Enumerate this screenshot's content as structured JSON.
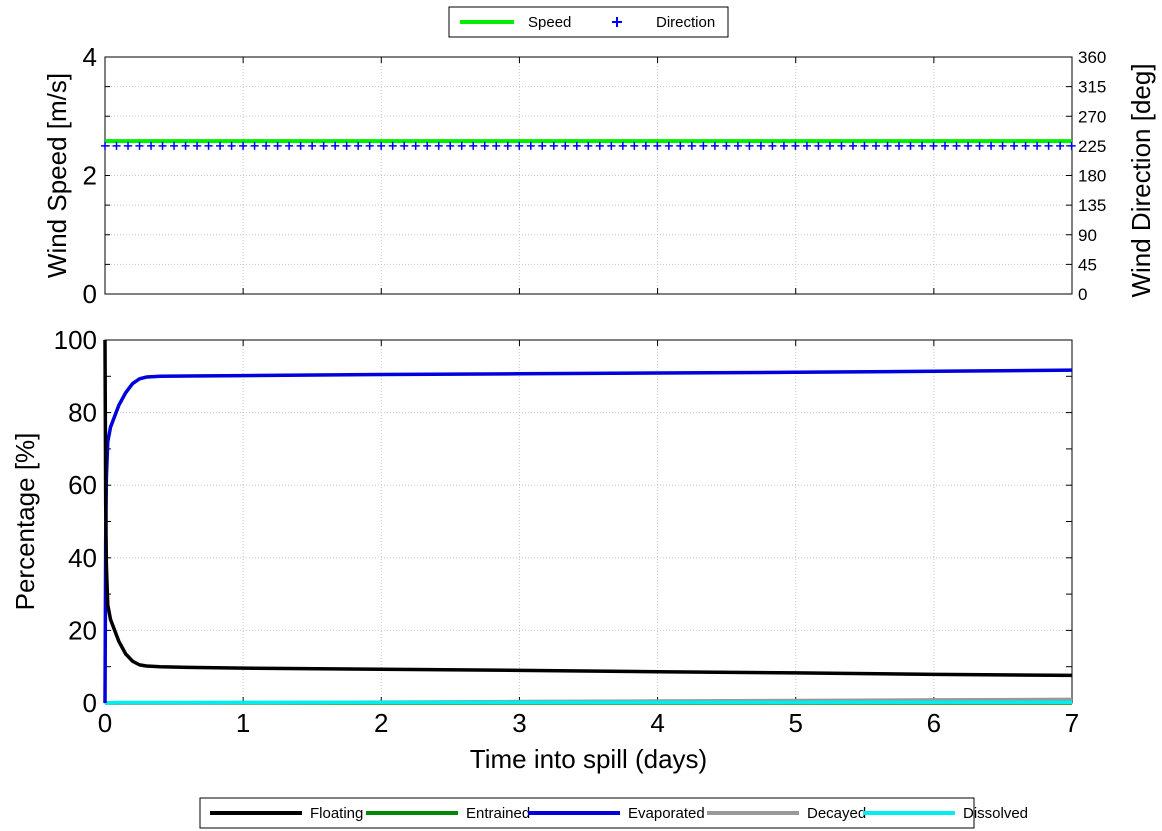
{
  "chart_data": [
    {
      "type": "line",
      "xlim": [
        0,
        7
      ],
      "ylabel": "Wind Speed [m/s]",
      "ylim": [
        0,
        4
      ],
      "yticks": [
        "0",
        "2",
        "4"
      ],
      "y2label": "Wind Direction [deg]",
      "y2lim": [
        0,
        360
      ],
      "y2ticks": [
        "0",
        "45",
        "90",
        "135",
        "180",
        "225",
        "270",
        "315",
        "360"
      ],
      "grid": true,
      "legend": "top-center",
      "series": [
        {
          "name": "Speed",
          "axis": "left",
          "color": "#00ee00",
          "x": [
            0,
            7
          ],
          "y": [
            2.58,
            2.58
          ]
        },
        {
          "name": "Direction",
          "axis": "right",
          "color": "#0000ff",
          "marker": "+",
          "x_start": 0,
          "x_end": 7,
          "x_step": 0.0833,
          "y": 225
        }
      ]
    },
    {
      "type": "line",
      "xlabel": "Time into spill (days)",
      "xlim": [
        0,
        7
      ],
      "xticks": [
        "0",
        "1",
        "2",
        "3",
        "4",
        "5",
        "6",
        "7"
      ],
      "ylabel": "Percentage  [%]",
      "ylim": [
        0,
        100
      ],
      "yticks": [
        "0",
        "20",
        "40",
        "60",
        "80",
        "100"
      ],
      "grid": true,
      "legend": "bottom-center",
      "series": [
        {
          "name": "Floating",
          "color": "#000000",
          "x": [
            0,
            0.005,
            0.01,
            0.02,
            0.04,
            0.06,
            0.1,
            0.15,
            0.2,
            0.25,
            0.3,
            0.4,
            0.6,
            1,
            2,
            3,
            4,
            5,
            6,
            7
          ],
          "y": [
            100,
            55,
            38,
            27,
            23,
            21,
            17,
            13.5,
            11.5,
            10.5,
            10.2,
            10,
            9.8,
            9.6,
            9.3,
            9,
            8.6,
            8.3,
            7.9,
            7.6
          ]
        },
        {
          "name": "Entrained",
          "color": "#008800",
          "x": [
            0,
            7
          ],
          "y": [
            0,
            0
          ]
        },
        {
          "name": "Evaporated",
          "color": "#0000dd",
          "x": [
            0,
            0.005,
            0.01,
            0.02,
            0.04,
            0.06,
            0.1,
            0.15,
            0.2,
            0.25,
            0.3,
            0.4,
            0.6,
            1,
            2,
            3,
            4,
            5,
            6,
            7
          ],
          "y": [
            0,
            45,
            62,
            72,
            76,
            78,
            82,
            85.5,
            88,
            89.3,
            89.8,
            90,
            90.1,
            90.2,
            90.5,
            90.7,
            90.9,
            91.1,
            91.4,
            91.7
          ]
        },
        {
          "name": "Decayed",
          "color": "#999999",
          "x": [
            0,
            1,
            2,
            3,
            4,
            5,
            6,
            7
          ],
          "y": [
            0,
            0.1,
            0.25,
            0.4,
            0.55,
            0.7,
            0.85,
            1.0
          ]
        },
        {
          "name": "Dissolved",
          "color": "#00eeee",
          "x": [
            0,
            0.1,
            7
          ],
          "y": [
            0,
            0.15,
            0.2
          ]
        }
      ]
    }
  ]
}
